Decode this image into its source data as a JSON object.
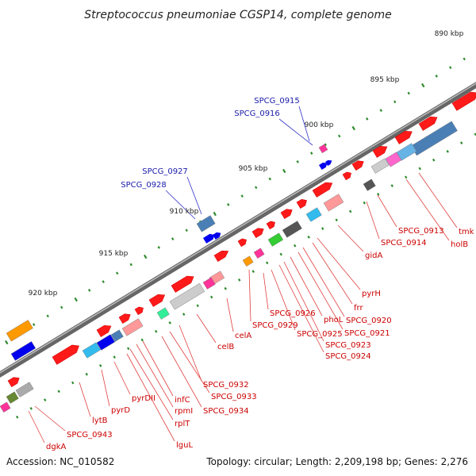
{
  "title": "Streptococcus pneumoniae CGSP14, complete genome",
  "footer": {
    "accession": "Accession: NC_010582",
    "summary": "Topology: circular; Length: 2,209,198 bp; Genes: 2,276"
  },
  "colors": {
    "forward_gene": "#ff1a1a",
    "reverse_gene": "#ff1a1a",
    "backbone": "#888888",
    "tick": "#2e8b2e",
    "label_red": "#cc0000",
    "label_blue": "#1a1aaa",
    "line_red": "#e04040",
    "line_blue": "#3333cc"
  },
  "scale": [
    "890 kbp",
    "895 kbp",
    "900 kbp",
    "905 kbp",
    "910 kbp",
    "915 kbp",
    "920 kbp"
  ],
  "labels_blue": [
    "SPCG_0915",
    "SPCG_0916",
    "SPCG_0927",
    "SPCG_0928"
  ],
  "labels_red": [
    "tmk",
    "holB",
    "SPCG_0913",
    "SPCG_0914",
    "gidA",
    "pyrH",
    "frr",
    "SPCG_0920",
    "SPCG_0921",
    "phoL",
    "SPCG_0923",
    "SPCG_0924",
    "SPCG_0925",
    "SPCG_0926",
    "SPCG_0929",
    "celA",
    "celB",
    "SPCG_0932",
    "SPCG_0933",
    "SPCG_0934",
    "infC",
    "rpmI",
    "rplT",
    "lguL",
    "pyrDII",
    "pyrD",
    "lytB",
    "SPCG_0943",
    "dgkA"
  ]
}
